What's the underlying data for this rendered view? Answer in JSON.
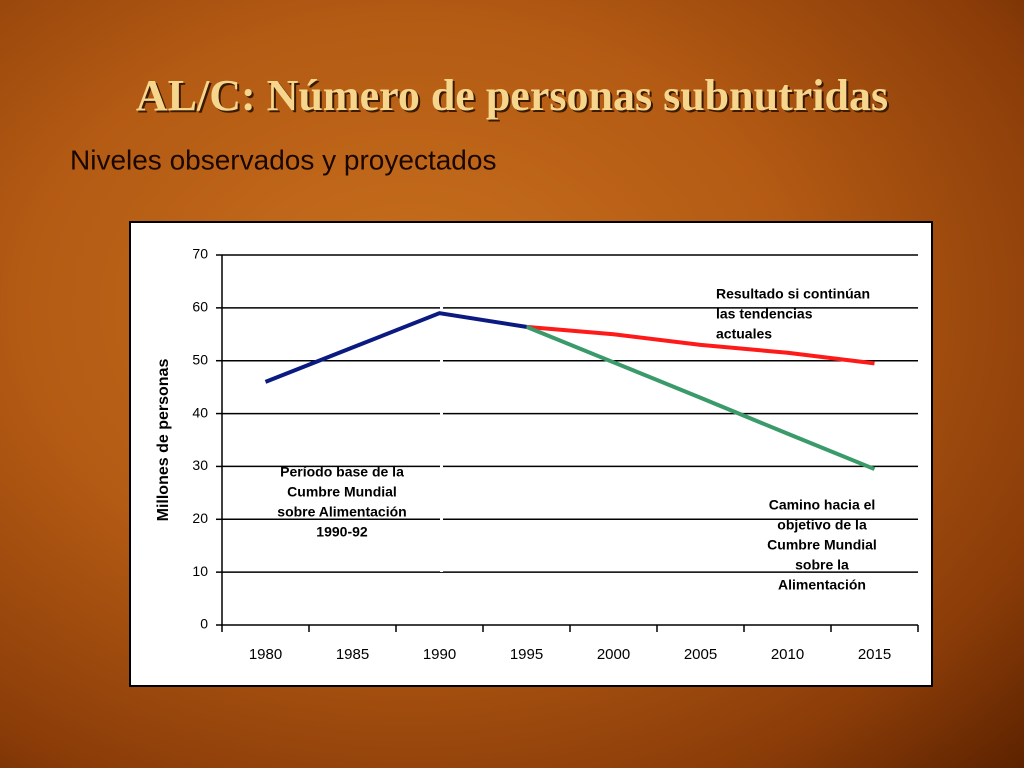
{
  "chart_data": {
    "type": "line",
    "title": "AL/C: Número de personas subnutridas",
    "subtitle": "Niveles observados y proyectados",
    "y_label": "Millones de personas",
    "categories": [
      "1980",
      "1985",
      "1990",
      "1995",
      "2000",
      "2005",
      "2010",
      "2015"
    ],
    "series": [
      {
        "color": "#0a1a80",
        "values": [
          46,
          52.5,
          59,
          56.4,
          null,
          null,
          null,
          null
        ]
      },
      {
        "color": "#ff1a1a",
        "values": [
          null,
          null,
          null,
          56.4,
          55,
          53,
          51.5,
          49.5
        ]
      },
      {
        "color": "#3a9a6a",
        "values": [
          null,
          null,
          null,
          56.4,
          49.7,
          43,
          36.2,
          29.5
        ]
      }
    ],
    "ylim": [
      0,
      70
    ],
    "yticks": [
      0,
      10,
      20,
      30,
      40,
      50,
      60,
      70
    ],
    "grid": true,
    "annotations": [
      {
        "lines": [
          "Resultado si continúan",
          "las tendencias",
          "actuales"
        ]
      },
      {
        "lines": [
          "Período base de la",
          "Cumbre Mundial",
          "sobre Alimentación",
          "1990-92"
        ]
      },
      {
        "lines": [
          "Camino hacia el",
          "objetivo de la",
          "Cumbre Mundial",
          "sobre la",
          "Alimentación"
        ]
      }
    ]
  }
}
